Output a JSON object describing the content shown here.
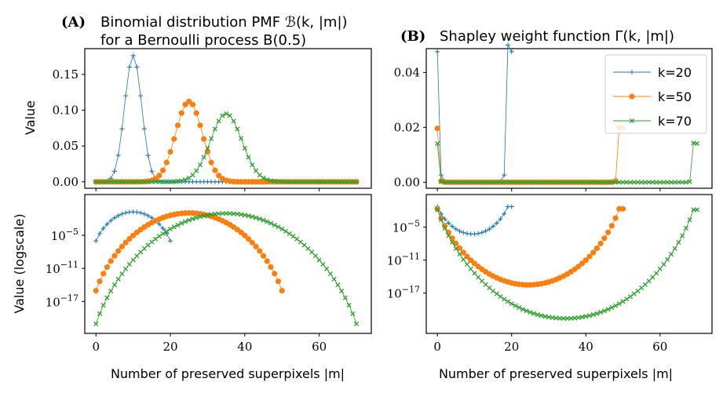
{
  "figure": {
    "panel_a_title_tag": "(A)",
    "panel_a_title_line1": "Binomial distribution PMF ℬ(k, |m|)",
    "panel_a_title_line2": "for a Bernoulli process B(0.5)",
    "panel_b_title_tag": "(B)",
    "panel_b_title": "Shapley weight function Γ(k, |m|)",
    "xlabel": "Number of preserved superpixels |m|",
    "ylabel_top": "Value",
    "ylabel_bottom": "Value (logscale)"
  },
  "colors": {
    "k20": "#1f77b4",
    "k50": "#ff7f0e",
    "k70": "#2ca02c"
  },
  "chart_data": [
    {
      "panel": "A-linear",
      "type": "line",
      "title": "(A) Binomial distribution PMF ℬ(k, |m|) for a Bernoulli process B(0.5)",
      "ylabel": "Value",
      "xlim": [
        -3,
        74
      ],
      "ylim": [
        -0.009,
        0.186
      ],
      "xticks": [
        0,
        20,
        40,
        60
      ],
      "show_xticklabels": false,
      "yticks": [
        0.0,
        0.05,
        0.1,
        0.15
      ],
      "ytick_labels": [
        "0.00",
        "0.05",
        "0.10",
        "0.15"
      ],
      "x_range": [
        0,
        70
      ],
      "formula": "binomial pmf C(k,m)*0.5^k for m<=k, else 0",
      "series": [
        {
          "name": "k=20",
          "k": 20,
          "marker": "plus",
          "color": "#1f77b4"
        },
        {
          "name": "k=50",
          "k": 50,
          "marker": "circle",
          "color": "#ff7f0e"
        },
        {
          "name": "k=70",
          "k": 70,
          "marker": "x",
          "color": "#2ca02c"
        }
      ]
    },
    {
      "panel": "A-log",
      "type": "line",
      "ylabel": "Value (logscale)",
      "xlabel": "Number of preserved superpixels |m|",
      "yscale": "log",
      "xlim": [
        -3,
        74
      ],
      "log10_ylim": [
        -22.8,
        2.4
      ],
      "xticks": [
        0,
        20,
        40,
        60
      ],
      "xtick_labels": [
        "0",
        "20",
        "40",
        "60"
      ],
      "yticks_log10": [
        -5,
        -11,
        -17
      ],
      "ytick_labels": [
        "10−5",
        "10−11",
        "10−17"
      ],
      "formula": "binomial pmf C(k,m)*0.5^k for m<=k",
      "series": [
        {
          "name": "k=20",
          "k": 20,
          "marker": "plus",
          "color": "#1f77b4"
        },
        {
          "name": "k=50",
          "k": 50,
          "marker": "circle",
          "color": "#ff7f0e"
        },
        {
          "name": "k=70",
          "k": 70,
          "marker": "x",
          "color": "#2ca02c"
        }
      ]
    },
    {
      "panel": "B-linear",
      "type": "line",
      "title": "(B) Shapley weight function Γ(k, |m|)",
      "xlim": [
        -3,
        74
      ],
      "ylim": [
        -0.0022,
        0.0487
      ],
      "xticks": [
        0,
        20,
        40,
        60
      ],
      "show_xticklabels": false,
      "yticks": [
        0.0,
        0.02,
        0.04
      ],
      "ytick_labels": [
        "0.00",
        "0.02",
        "0.04"
      ],
      "legend": "top-right",
      "legend_entries": [
        "k=20",
        "k=50",
        "k=70"
      ],
      "formula": "Shapley kernel 1/(k * C(k-1,m)) for m<=k-1, plus end point m=k",
      "series": [
        {
          "name": "k=20",
          "k": 20,
          "marker": "plus",
          "color": "#1f77b4",
          "endpoints": [
            0.0476,
            0.0476
          ]
        },
        {
          "name": "k=50",
          "k": 50,
          "marker": "circle",
          "color": "#ff7f0e",
          "endpoints": [
            0.0196,
            0.0196
          ]
        },
        {
          "name": "k=70",
          "k": 70,
          "marker": "x",
          "color": "#2ca02c",
          "endpoints": [
            0.0141,
            0.0141
          ]
        }
      ]
    },
    {
      "panel": "B-log",
      "type": "line",
      "xlabel": "Number of preserved superpixels |m|",
      "yscale": "log",
      "xlim": [
        -3,
        74
      ],
      "log10_ylim": [
        -24.3,
        0.9
      ],
      "xticks": [
        0,
        20,
        40,
        60
      ],
      "xtick_labels": [
        "0",
        "20",
        "40",
        "60"
      ],
      "yticks_log10": [
        -5,
        -11,
        -17
      ],
      "ytick_labels": [
        "10−5",
        "10−11",
        "10−17"
      ],
      "series": [
        {
          "name": "k=20",
          "k": 20,
          "marker": "plus",
          "color": "#1f77b4"
        },
        {
          "name": "k=50",
          "k": 50,
          "marker": "circle",
          "color": "#ff7f0e"
        },
        {
          "name": "k=70",
          "k": 70,
          "marker": "x",
          "color": "#2ca02c"
        }
      ]
    }
  ]
}
